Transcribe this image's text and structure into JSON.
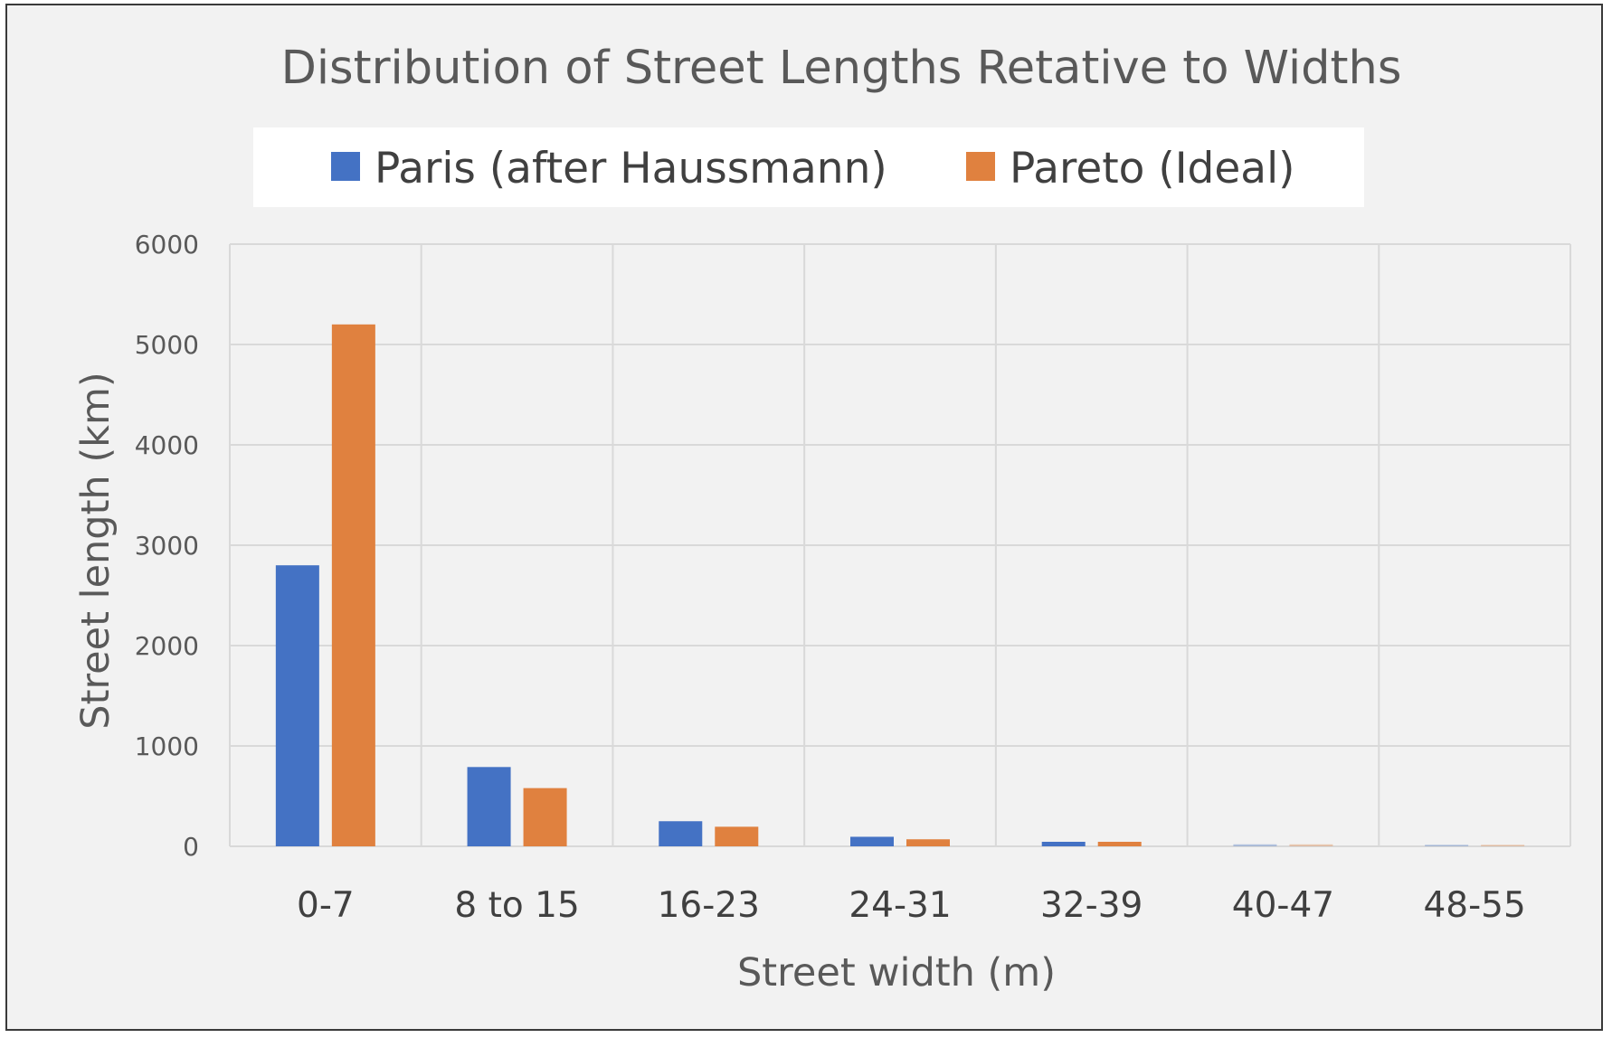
{
  "chart_data": {
    "type": "bar",
    "title": "Distribution of Street Lengths Retative to Widths",
    "xlabel": "Street width (m)",
    "ylabel": "Street length (km)",
    "categories": [
      "0-7",
      "8 to 15",
      "16-23",
      "24-31",
      "32-39",
      "40-47",
      "48-55"
    ],
    "series": [
      {
        "name": "Paris (after Haussmann)",
        "color": "#4472c4",
        "values": [
          2800,
          790,
          250,
          95,
          45,
          20,
          15
        ]
      },
      {
        "name": "Pareto (Ideal)",
        "color": "#e0813f",
        "values": [
          5200,
          580,
          195,
          70,
          45,
          20,
          15
        ]
      }
    ],
    "ylim": [
      0,
      6000
    ],
    "yticks": [
      0,
      1000,
      2000,
      3000,
      4000,
      5000,
      6000
    ],
    "grid": true,
    "legend_position": "top"
  }
}
